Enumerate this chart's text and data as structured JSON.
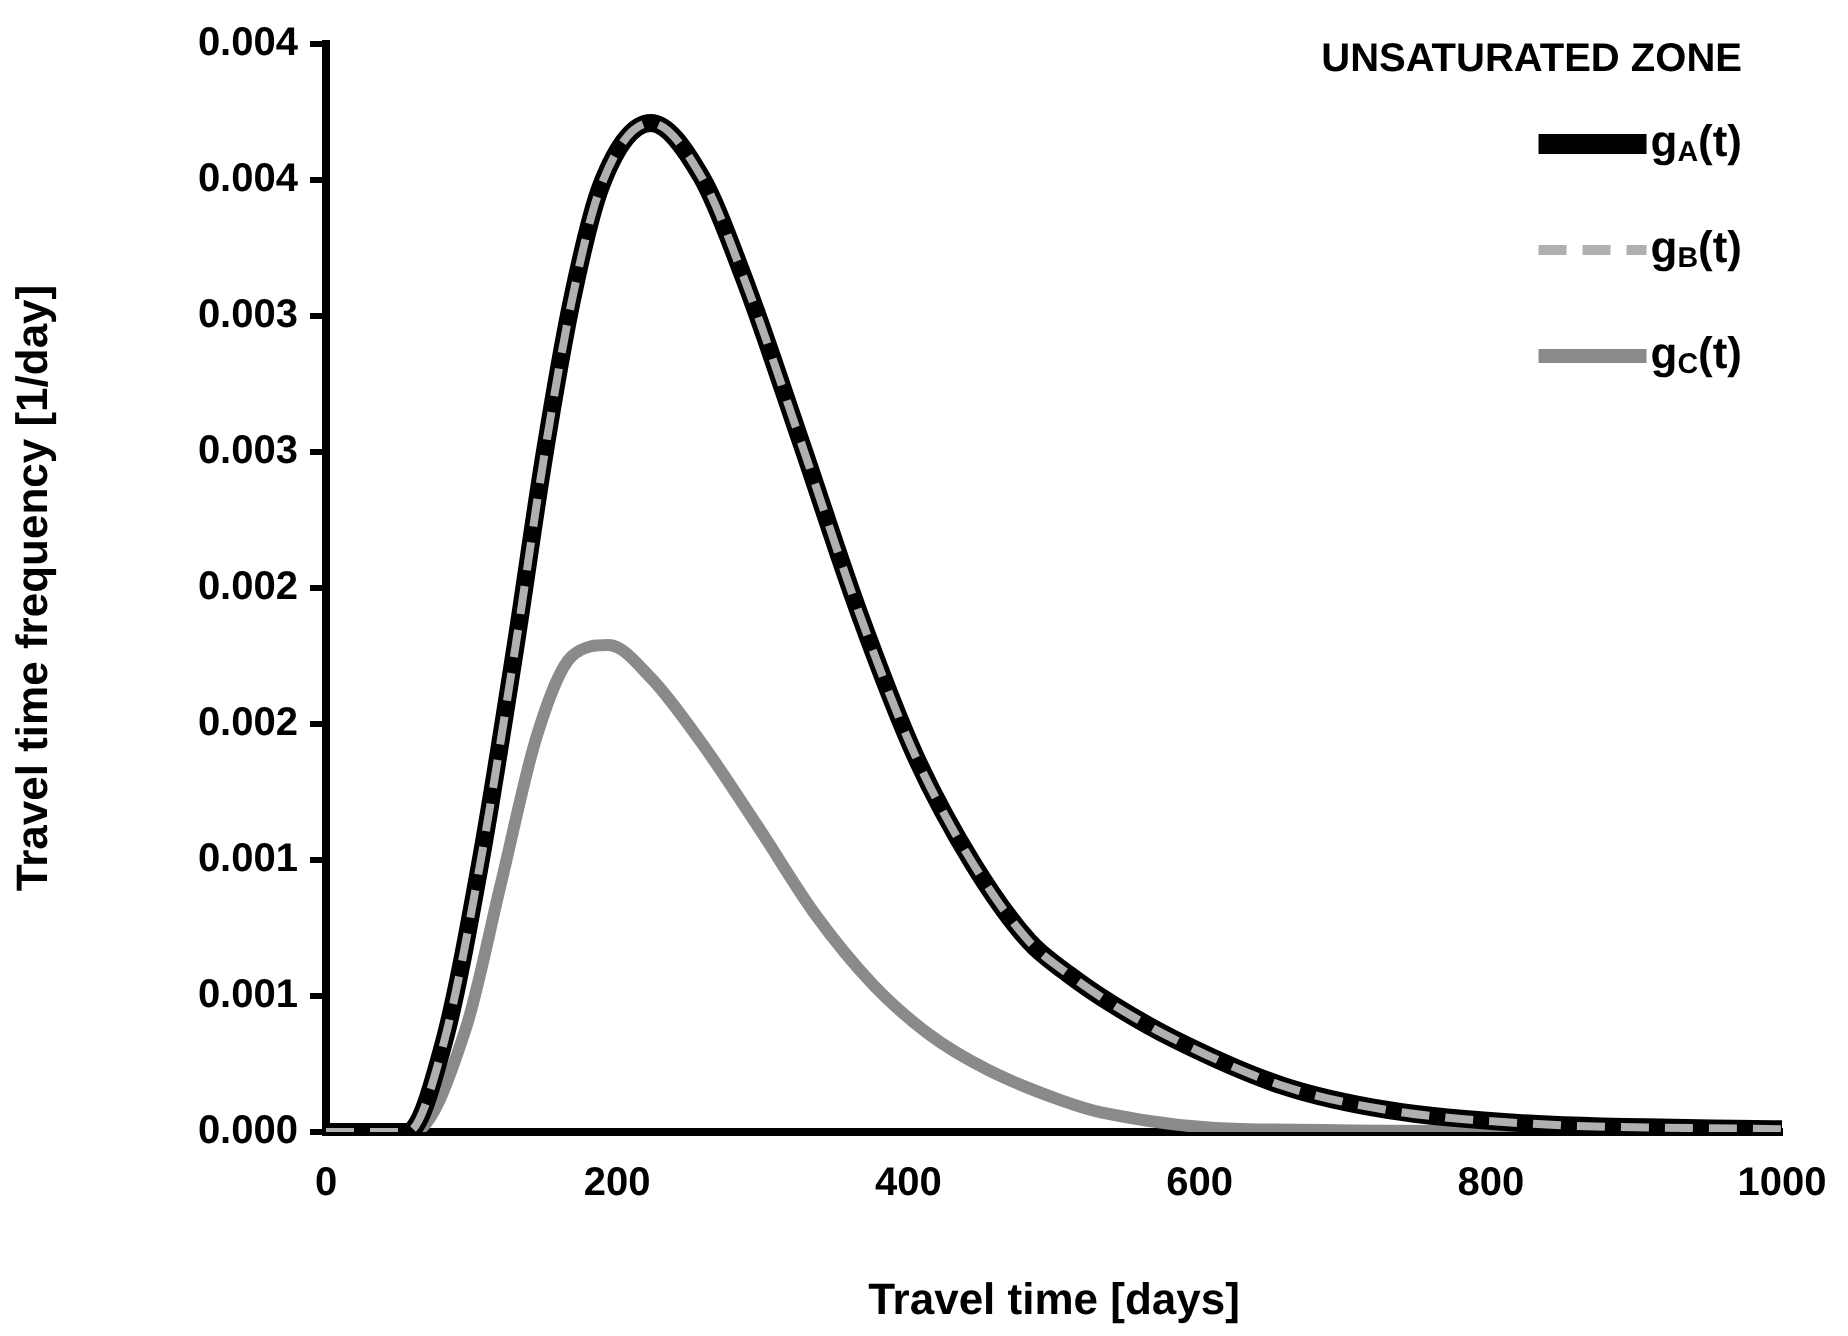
{
  "chart_data": {
    "type": "line",
    "xlabel": "Travel time [days]",
    "ylabel": "Travel time frequency [1/day]",
    "legend_title": "UNSATURATED ZONE",
    "legend": "top right",
    "xlim": [
      0,
      1000
    ],
    "xticks": [
      0,
      200,
      400,
      600,
      800,
      1000
    ],
    "ylim": [
      0,
      0.004
    ],
    "yticks": [
      {
        "value": 0,
        "label": "0.000"
      },
      {
        "value": 0.0005,
        "label": "0.001"
      },
      {
        "value": 0.001,
        "label": "0.001"
      },
      {
        "value": 0.0015,
        "label": "0.002"
      },
      {
        "value": 0.002,
        "label": "0.002"
      },
      {
        "value": 0.0025,
        "label": "0.003"
      },
      {
        "value": 0.003,
        "label": "0.003"
      },
      {
        "value": 0.0035,
        "label": "0.004"
      },
      {
        "value": 0.004,
        "label": "0.004"
      }
    ],
    "grid": false,
    "marker": "none",
    "x": [
      0,
      56,
      81,
      106,
      130,
      150,
      169,
      189,
      223,
      258,
      287,
      326,
      366,
      405,
      444,
      483,
      510,
      540,
      583,
      657,
      730,
      829,
      1000
    ],
    "series": [
      {
        "name": "g$_{A}$(t)",
        "color": "#000000",
        "line_style": "solid",
        "values": [
          0,
          0,
          0.00033,
          0.00099,
          0.00178,
          0.00249,
          0.00306,
          0.00348,
          0.00371,
          0.00351,
          0.00314,
          0.00254,
          0.00191,
          0.00138,
          0.00099,
          0.0007,
          0.00058,
          0.00047,
          0.00034,
          0.00017,
          8e-05,
          3e-05,
          1e-05
        ]
      },
      {
        "name": "g$_{B}$(t)",
        "color": "#b0b0b0",
        "line_style": "dashed",
        "values": [
          0,
          0,
          0.00033,
          0.00099,
          0.00178,
          0.00249,
          0.00306,
          0.00348,
          0.00371,
          0.00351,
          0.00314,
          0.00254,
          0.00191,
          0.00138,
          0.00099,
          0.0007,
          0.00058,
          0.00047,
          0.00034,
          0.00017,
          8e-05,
          3e-05,
          1e-05
        ]
      },
      {
        "name": "g$_{C}$(t)",
        "color": "#8a8a8a",
        "line_style": "solid",
        "x": [
          0,
          60,
          96,
          120,
          145,
          169,
          194,
          223,
          258,
          297,
          336,
          376,
          414,
          454,
          503,
          534,
          633,
          1000
        ],
        "values": [
          0,
          0,
          0.00038,
          0.00091,
          0.00146,
          0.00175,
          0.00179,
          0.00167,
          0.00143,
          0.00112,
          0.0008,
          0.00054,
          0.00036,
          0.00023,
          0.00012,
          7e-05,
          1e-05,
          0
        ]
      }
    ]
  }
}
